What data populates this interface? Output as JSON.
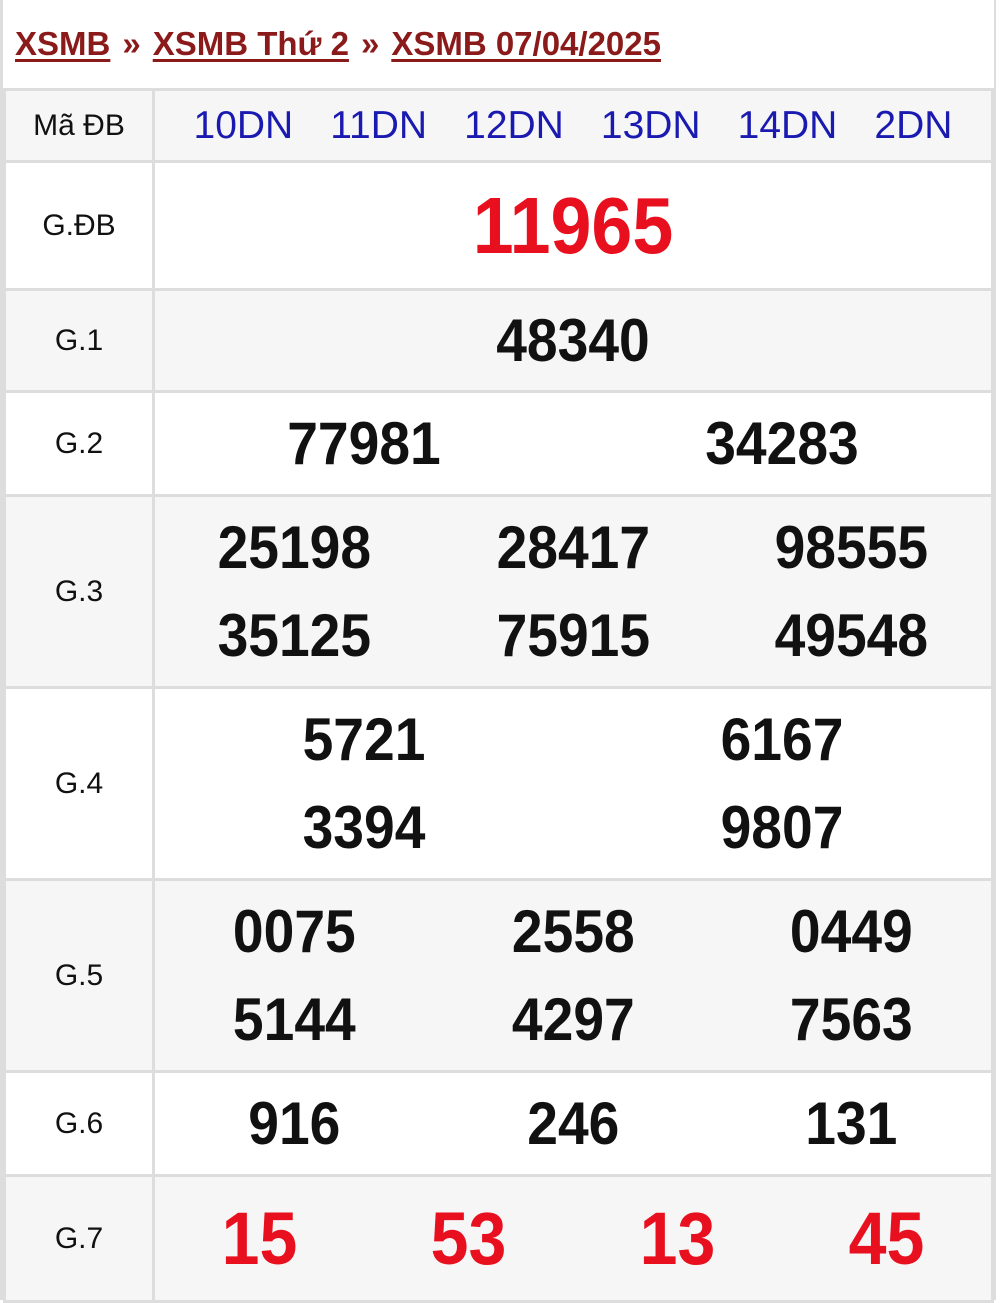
{
  "breadcrumb": {
    "items": [
      "XSMB",
      "XSMB Thứ 2",
      "XSMB 07/04/2025"
    ],
    "separator": "»"
  },
  "colors": {
    "breadcrumb": "#8b1a1a",
    "code": "#1a1ab0",
    "highlight": "#e8101e"
  },
  "header": {
    "label": "Mã ĐB",
    "codes": [
      "10DN",
      "11DN",
      "12DN",
      "13DN",
      "14DN",
      "2DN"
    ]
  },
  "prizes": [
    {
      "label": "G.ĐB",
      "lines": [
        [
          "11965"
        ]
      ]
    },
    {
      "label": "G.1",
      "lines": [
        [
          "48340"
        ]
      ]
    },
    {
      "label": "G.2",
      "lines": [
        [
          "77981",
          "34283"
        ]
      ]
    },
    {
      "label": "G.3",
      "lines": [
        [
          "25198",
          "28417",
          "98555"
        ],
        [
          "35125",
          "75915",
          "49548"
        ]
      ]
    },
    {
      "label": "G.4",
      "lines": [
        [
          "5721",
          "6167"
        ],
        [
          "3394",
          "9807"
        ]
      ]
    },
    {
      "label": "G.5",
      "lines": [
        [
          "0075",
          "2558",
          "0449"
        ],
        [
          "5144",
          "4297",
          "7563"
        ]
      ]
    },
    {
      "label": "G.6",
      "lines": [
        [
          "916",
          "246",
          "131"
        ]
      ]
    },
    {
      "label": "G.7",
      "lines": [
        [
          "15",
          "53",
          "13",
          "45"
        ]
      ]
    }
  ]
}
